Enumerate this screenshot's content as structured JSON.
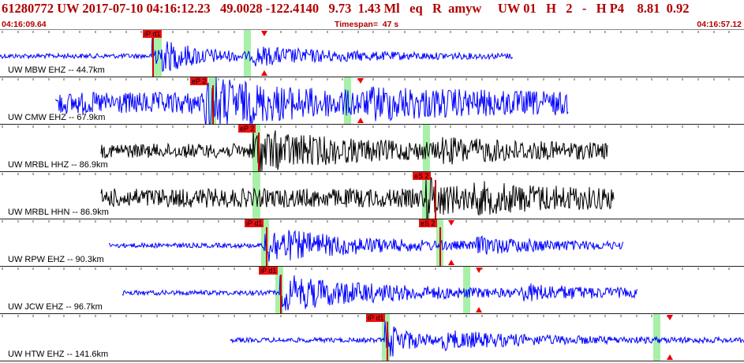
{
  "header": {
    "title": "61280772 UW 2017-07-10 04:16:12.23   49.0028 -122.4140   9.73  1.43 Ml   eq   R  amyw     UW 01   H   2   -   H P4    8.81  0.92",
    "start_time": "04:16:09.64",
    "timespan": "Timespan=  47 s",
    "end_time": "04:16:57.12"
  },
  "colors": {
    "header_text": "#b00000",
    "trace_blue": "#0000ff",
    "trace_black": "#000000",
    "pick": "#ee1111",
    "window": "#a8f0a8"
  },
  "panels": [
    {
      "label": "UW MBW EHZ -- 44.7km",
      "color": "#0000ff",
      "picks": [
        {
          "label": "iP d1"
        }
      ],
      "markers": 1
    },
    {
      "label": "UW CMW EHZ -- 67.9km",
      "color": "#0000ff",
      "picks": [
        {
          "label": "eP 2"
        }
      ],
      "markers": 1
    },
    {
      "label": "UW MRBL HHZ -- 86.9km",
      "color": "#000000",
      "picks": [
        {
          "label": "eP 2"
        }
      ],
      "markers": 0
    },
    {
      "label": "UW MRBL HHN -- 86.9km",
      "color": "#000000",
      "picks": [
        {
          "label": "eS 2"
        }
      ],
      "markers": 0
    },
    {
      "label": "UW RPW EHZ -- 90.3km",
      "color": "#0000ff",
      "picks": [
        {
          "label": "iP d1"
        },
        {
          "label": "eS 2"
        }
      ],
      "markers": 1
    },
    {
      "label": "UW JCW EHZ -- 96.7km",
      "color": "#0000ff",
      "picks": [
        {
          "label": "iP d1"
        }
      ],
      "markers": 1
    },
    {
      "label": "UW HTW EHZ -- 141.6km",
      "color": "#0000ff",
      "picks": [
        {
          "label": "iP d1"
        }
      ],
      "markers": 1
    }
  ]
}
